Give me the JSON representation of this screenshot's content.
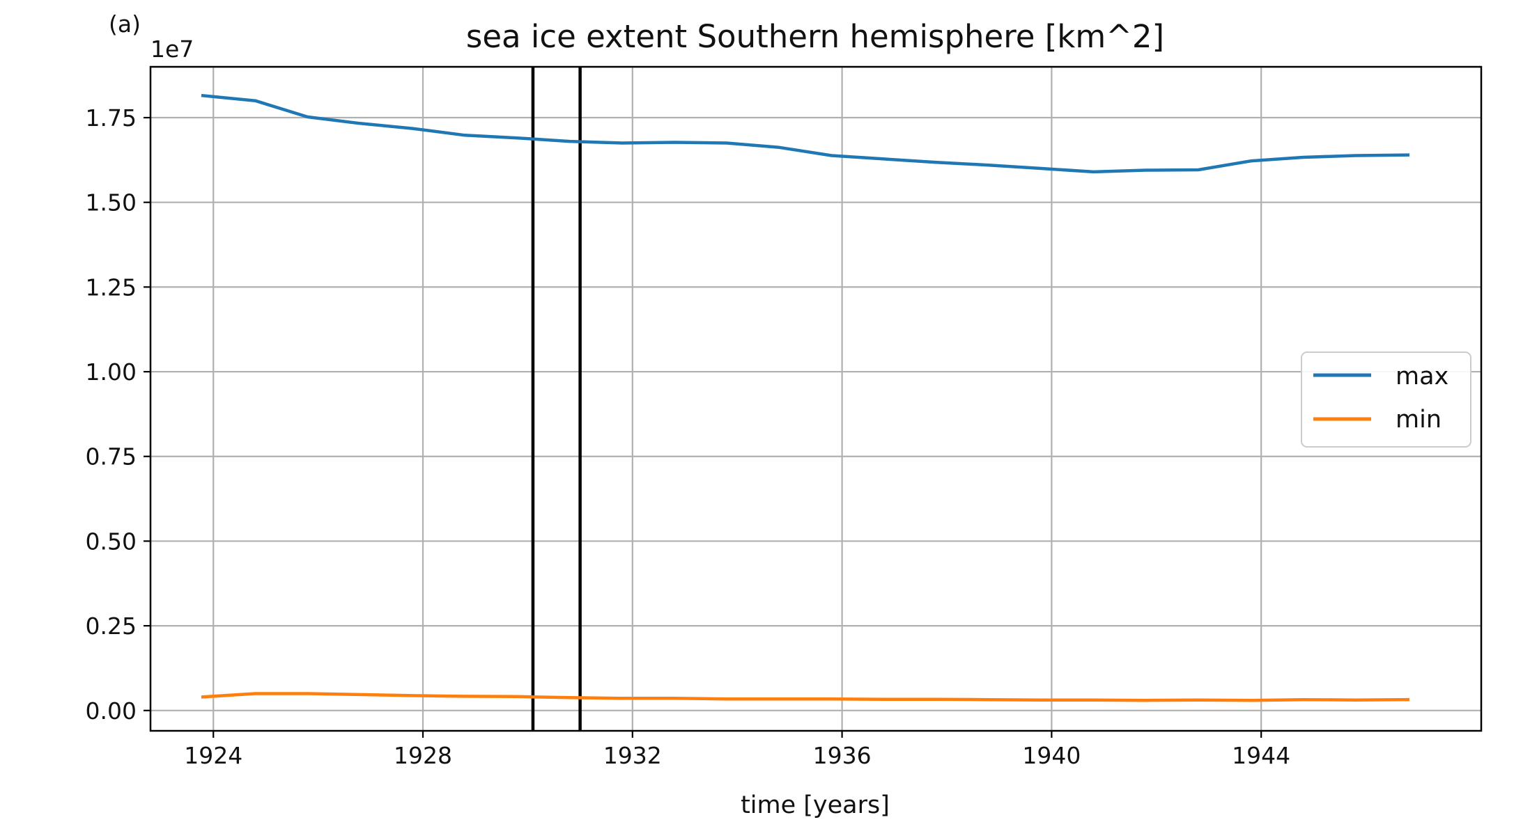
{
  "chart_data": {
    "type": "line",
    "title": "sea ice extent Southern hemisphere [km^2]",
    "panel_label": "(a)",
    "xlabel": "time [years]",
    "ylabel": "",
    "y_offset_label": "1e7",
    "xlim": [
      1922.8,
      1948.2
    ],
    "ylim": [
      -0.06,
      1.9
    ],
    "x_ticks": [
      1924,
      1928,
      1932,
      1936,
      1940,
      1944
    ],
    "x_tick_labels": [
      "1924",
      "1928",
      "1932",
      "1936",
      "1940",
      "1944"
    ],
    "y_ticks": [
      0.0,
      0.25,
      0.5,
      0.75,
      1.0,
      1.25,
      1.5,
      1.75
    ],
    "y_tick_labels": [
      "0.00",
      "0.25",
      "0.50",
      "0.75",
      "1.00",
      "1.25",
      "1.50",
      "1.75"
    ],
    "grid": true,
    "legend_position": "center-right",
    "vertical_lines": [
      1930.1,
      1931.0
    ],
    "x": [
      1923.8,
      1924.8,
      1925.8,
      1926.8,
      1927.8,
      1928.8,
      1929.8,
      1930.8,
      1931.8,
      1932.8,
      1933.8,
      1934.8,
      1935.8,
      1936.8,
      1937.8,
      1938.8,
      1939.8,
      1940.8,
      1941.8,
      1942.8,
      1943.8,
      1944.8,
      1945.8,
      1946.8
    ],
    "series": [
      {
        "name": "max",
        "color": "#1f77b4",
        "values": [
          1.815,
          1.8,
          1.752,
          1.733,
          1.718,
          1.698,
          1.69,
          1.68,
          1.675,
          1.677,
          1.675,
          1.662,
          1.638,
          1.628,
          1.618,
          1.61,
          1.6,
          1.59,
          1.595,
          1.596,
          1.622,
          1.633,
          1.638,
          1.64
        ]
      },
      {
        "name": "min",
        "color": "#ff7f0e",
        "values": [
          0.04,
          0.05,
          0.05,
          0.047,
          0.044,
          0.042,
          0.041,
          0.038,
          0.036,
          0.036,
          0.034,
          0.034,
          0.034,
          0.033,
          0.033,
          0.032,
          0.031,
          0.031,
          0.03,
          0.031,
          0.03,
          0.032,
          0.031,
          0.032
        ]
      }
    ]
  }
}
